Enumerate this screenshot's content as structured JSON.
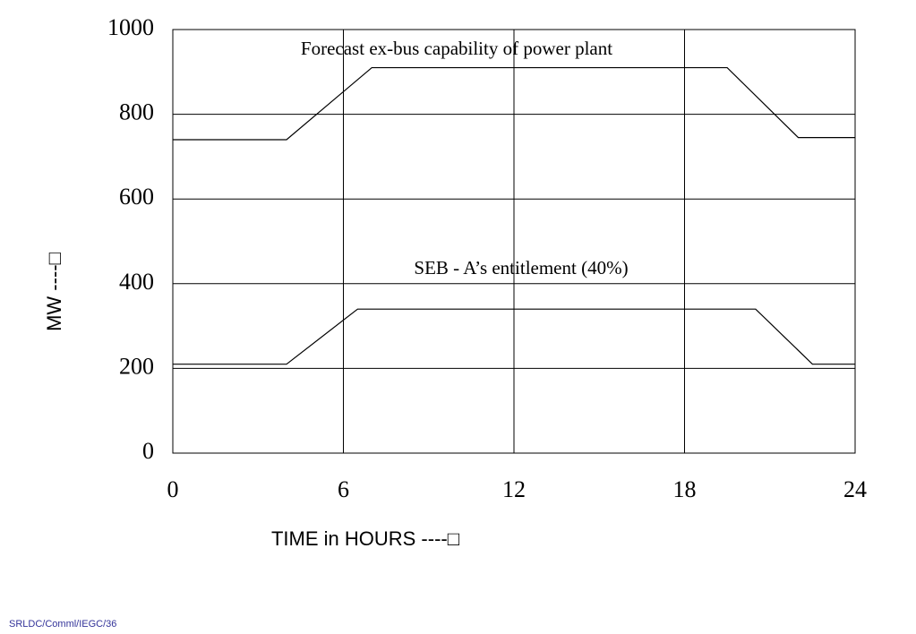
{
  "chart_data": {
    "type": "line",
    "xlabel": "TIME in HOURS ----□",
    "ylabel": "MW ----□",
    "footer": "SRLDC/Comml/IEGC/36",
    "series": [
      {
        "name": "Forecast ex-bus capability of power plant",
        "color": "#000000",
        "x": [
          0,
          4,
          7,
          19.5,
          22,
          24
        ],
        "values": [
          740,
          740,
          910,
          910,
          745,
          745
        ]
      },
      {
        "name": "SEB - A’s entitlement (40%)",
        "color": "#000000",
        "x": [
          0,
          4,
          6.5,
          20.5,
          22.5,
          24
        ],
        "values": [
          210,
          210,
          340,
          340,
          210,
          210
        ]
      }
    ],
    "xlim": [
      0,
      24
    ],
    "xticks": [
      0,
      6,
      12,
      18,
      24
    ],
    "ylim": [
      0,
      1000
    ],
    "yticks": [
      0,
      200,
      400,
      600,
      800,
      1000
    ],
    "grid": true
  }
}
